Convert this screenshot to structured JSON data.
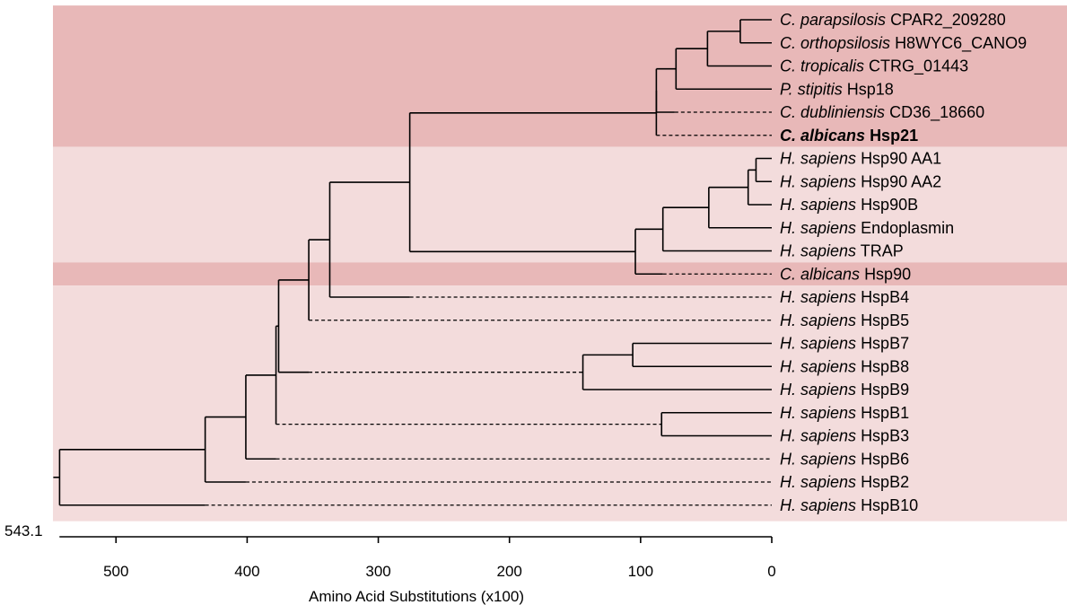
{
  "axis": {
    "label": "Amino Acid Substitutions (x100)",
    "root_value_label": "543.1",
    "ticks": [
      "500",
      "400",
      "300",
      "200",
      "100",
      "0"
    ],
    "tick_values": [
      500,
      400,
      300,
      200,
      100,
      0
    ],
    "range": [
      543.1,
      0
    ]
  },
  "colors": {
    "band_dark": "#e8b8b8",
    "band_light": "#f3dcdc",
    "line": "#000000"
  },
  "leaves": [
    {
      "genus": "C. parapsilosis",
      "name": "CPAR2_209280",
      "bold": false
    },
    {
      "genus": "C. orthopsilosis",
      "name": "H8WYC6_CANO9",
      "bold": false
    },
    {
      "genus": "C. tropicalis",
      "name": "CTRG_01443",
      "bold": false
    },
    {
      "genus": "P. stipitis",
      "name": "Hsp18",
      "bold": false
    },
    {
      "genus": "C. dubliniensis",
      "name": "CD36_18660",
      "bold": false
    },
    {
      "genus": "C. albicans",
      "name": "Hsp21",
      "bold": true
    },
    {
      "genus": "H. sapiens",
      "name": "Hsp90 AA1",
      "bold": false
    },
    {
      "genus": "H. sapiens",
      "name": "Hsp90 AA2",
      "bold": false
    },
    {
      "genus": "H. sapiens",
      "name": "Hsp90B",
      "bold": false
    },
    {
      "genus": "H. sapiens",
      "name": "Endoplasmin",
      "bold": false
    },
    {
      "genus": "H. sapiens",
      "name": "TRAP",
      "bold": false
    },
    {
      "genus": "C. albicans",
      "name": "Hsp90",
      "bold": false
    },
    {
      "genus": "H. sapiens",
      "name": "HspB4",
      "bold": false
    },
    {
      "genus": "H. sapiens",
      "name": "HspB5",
      "bold": false
    },
    {
      "genus": "H. sapiens",
      "name": "HspB7",
      "bold": false
    },
    {
      "genus": "H. sapiens",
      "name": "HspB8",
      "bold": false
    },
    {
      "genus": "H. sapiens",
      "name": "HspB9",
      "bold": false
    },
    {
      "genus": "H. sapiens",
      "name": "HspB1",
      "bold": false
    },
    {
      "genus": "H. sapiens",
      "name": "HspB3",
      "bold": false
    },
    {
      "genus": "H. sapiens",
      "name": "HspB6",
      "bold": false
    },
    {
      "genus": "H. sapiens",
      "name": "HspB2",
      "bold": false
    },
    {
      "genus": "H. sapiens",
      "name": "HspB10",
      "bold": false
    }
  ],
  "bands": [
    {
      "from": 0,
      "to": 5,
      "shade": "dark"
    },
    {
      "from": 6,
      "to": 10,
      "shade": "light"
    },
    {
      "from": 11,
      "to": 11,
      "shade": "dark"
    },
    {
      "from": 12,
      "to": 21,
      "shade": "light"
    }
  ],
  "tree": {
    "d": 543,
    "c": [
      {
        "d": 432,
        "c": [
          {
            "d": 401,
            "c": [
              {
                "d": 378,
                "c": [
                  {
                    "d": 376,
                    "c": [
                      {
                        "d": 353,
                        "c": [
                          {
                            "d": 337,
                            "c": [
                              {
                                "d": 276,
                                "c": [
                                  {
                                    "d": 88,
                                    "c": [
                                      {
                                        "d": 88,
                                        "c": [
                                          {
                                            "d": 73,
                                            "c": [
                                              {
                                                "d": 49,
                                                "c": [
                                                  {
                                                    "d": 24,
                                                    "c": [
                                                      {
                                                        "leaf": 0
                                                      },
                                                      {
                                                        "leaf": 1
                                                      }
                                                    ]
                                                  },
                                                  {
                                                    "leaf": 2
                                                  }
                                                ]
                                              },
                                              {
                                                "leaf": 3
                                              }
                                            ]
                                          },
                                          {
                                            "leaf": 4,
                                            "dashFrom": 74
                                          }
                                        ]
                                      },
                                      {
                                        "leaf": 5,
                                        "dashFrom": 88
                                      }
                                    ]
                                  },
                                  {
                                    "d": 104,
                                    "c": [
                                      {
                                        "d": 83,
                                        "c": [
                                          {
                                            "d": 48,
                                            "c": [
                                              {
                                                "d": 18,
                                                "c": [
                                                  {
                                                    "d": 12,
                                                    "c": [
                                                      {
                                                        "leaf": 6
                                                      },
                                                      {
                                                        "leaf": 7
                                                      }
                                                    ]
                                                  },
                                                  {
                                                    "leaf": 8
                                                  }
                                                ]
                                              },
                                              {
                                                "leaf": 9
                                              }
                                            ]
                                          },
                                          {
                                            "leaf": 10
                                          }
                                        ]
                                      },
                                      {
                                        "leaf": 11,
                                        "dashFrom": 83
                                      }
                                    ]
                                  }
                                ]
                              },
                              {
                                "leaf": 12,
                                "dashFrom": 276
                              }
                            ]
                          },
                          {
                            "leaf": 13,
                            "dashFrom": 353
                          }
                        ]
                      },
                      {
                        "d": 144,
                        "c": [
                          {
                            "d": 106,
                            "c": [
                              {
                                "leaf": 14
                              },
                              {
                                "leaf": 15
                              }
                            ]
                          },
                          {
                            "leaf": 16
                          }
                        ],
                        "dashTo": 144,
                        "dashFrom": 353
                      }
                    ]
                  },
                  {
                    "d": 84,
                    "c": [
                      {
                        "leaf": 17
                      },
                      {
                        "leaf": 18
                      }
                    ],
                    "dashFrom": 378
                  }
                ]
              },
              {
                "leaf": 19,
                "dashFrom": 378
              }
            ]
          },
          {
            "leaf": 20,
            "dashFrom": 401
          }
        ]
      },
      {
        "leaf": 21,
        "dashFrom": 432
      }
    ]
  }
}
